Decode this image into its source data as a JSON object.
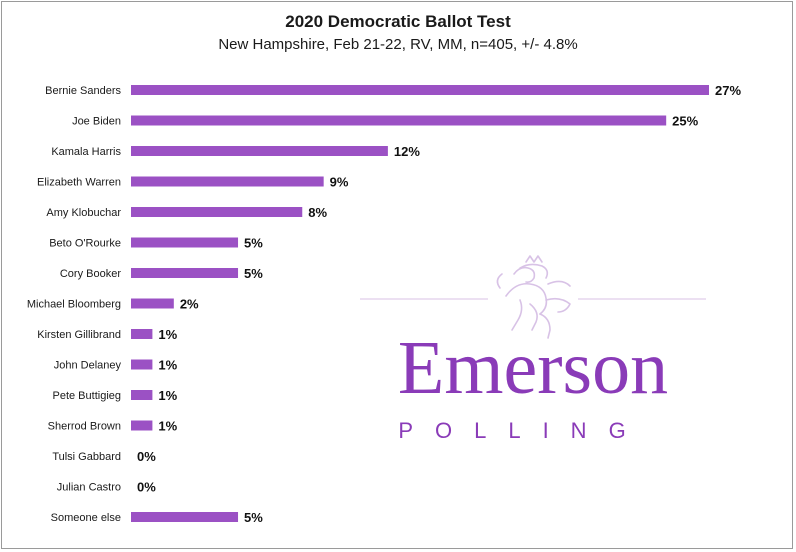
{
  "chart_data": {
    "type": "bar",
    "orientation": "horizontal",
    "title": "2020 Democratic Ballot Test",
    "subtitle": "New Hampshire, Feb 21-22, RV, MM, n=405, +/- 4.8%",
    "categories": [
      "Bernie Sanders",
      "Joe Biden",
      "Kamala Harris",
      "Elizabeth Warren",
      "Amy Klobuchar",
      "Beto O'Rourke",
      "Cory Booker",
      "Michael Bloomberg",
      "Kirsten Gillibrand",
      "John Delaney",
      "Pete Buttigieg",
      "Sherrod Brown",
      "Tulsi Gabbard",
      "Julian Castro",
      "Someone else"
    ],
    "values": [
      27,
      25,
      12,
      9,
      8,
      5,
      5,
      2,
      1,
      1,
      1,
      1,
      0,
      0,
      5
    ],
    "value_labels": [
      "27%",
      "25%",
      "12%",
      "9%",
      "8%",
      "5%",
      "5%",
      "2%",
      "1%",
      "1%",
      "1%",
      "1%",
      "0%",
      "0%",
      "5%"
    ],
    "xlim": [
      0,
      27
    ],
    "grid": false,
    "legend": "none",
    "bar_color": "#9b51c4"
  },
  "logo": {
    "name": "Emerson",
    "tagline": "POLLING",
    "color": "#8a3bb8",
    "line_color": "#d8c2e6"
  }
}
